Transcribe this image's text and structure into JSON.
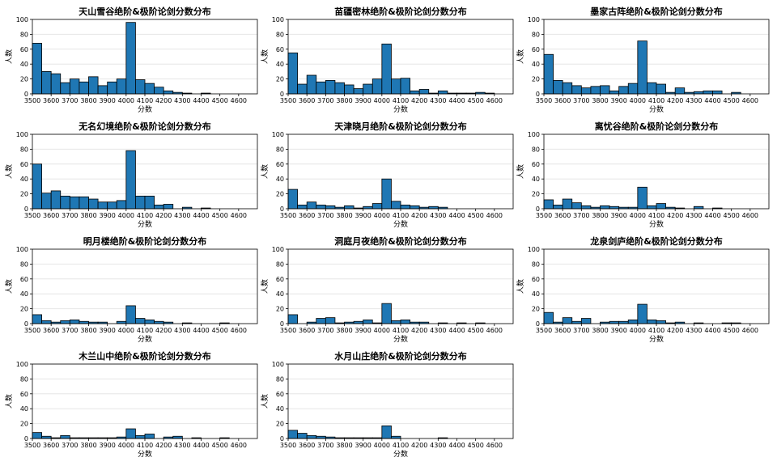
{
  "chart_data": [
    {
      "type": "bar",
      "title": "天山雪谷绝阶&极阶论剑分数分布",
      "xlabel": "分数",
      "ylabel": "人数",
      "bin_start": 3500,
      "bin_width": 50,
      "xlim": [
        3500,
        4700
      ],
      "ylim": [
        0,
        100
      ],
      "xticks": [
        "3500",
        "3600",
        "3700",
        "3800",
        "3900",
        "4000",
        "4100",
        "4200",
        "4300",
        "4400",
        "4500",
        "4600"
      ],
      "yticks": [
        "0",
        "20",
        "40",
        "60",
        "80",
        "100"
      ],
      "grid": "y",
      "values": [
        68,
        30,
        27,
        15,
        20,
        16,
        23,
        11,
        16,
        20,
        96,
        19,
        14,
        9,
        4,
        2,
        1,
        0,
        1,
        0,
        0,
        0
      ]
    },
    {
      "type": "bar",
      "title": "苗疆密林绝阶&极阶论剑分数分布",
      "xlabel": "分数",
      "ylabel": "人数",
      "bin_start": 3500,
      "bin_width": 50,
      "xlim": [
        3500,
        4700
      ],
      "ylim": [
        0,
        100
      ],
      "xticks": [
        "3500",
        "3600",
        "3700",
        "3800",
        "3900",
        "4000",
        "4100",
        "4200",
        "4300",
        "4400",
        "4500",
        "4600"
      ],
      "yticks": [
        "0",
        "20",
        "40",
        "60",
        "80",
        "100"
      ],
      "grid": "y",
      "values": [
        55,
        13,
        25,
        16,
        18,
        15,
        12,
        7,
        13,
        20,
        67,
        20,
        21,
        4,
        6,
        1,
        4,
        1,
        1,
        1,
        2,
        1
      ]
    },
    {
      "type": "bar",
      "title": "墨家古阵绝阶&极阶论剑分数分布",
      "xlabel": "分数",
      "ylabel": "人数",
      "bin_start": 3500,
      "bin_width": 50,
      "xlim": [
        3500,
        4700
      ],
      "ylim": [
        0,
        100
      ],
      "xticks": [
        "3500",
        "3600",
        "3700",
        "3800",
        "3900",
        "4000",
        "4100",
        "4200",
        "4300",
        "4400",
        "4500",
        "4600"
      ],
      "yticks": [
        "0",
        "20",
        "40",
        "60",
        "80",
        "100"
      ],
      "grid": "y",
      "values": [
        53,
        18,
        15,
        11,
        8,
        10,
        11,
        4,
        10,
        14,
        71,
        15,
        13,
        2,
        8,
        2,
        3,
        4,
        4,
        0,
        2,
        0
      ]
    },
    {
      "type": "bar",
      "title": "无名幻境绝阶&极阶论剑分数分布",
      "xlabel": "分数",
      "ylabel": "人数",
      "bin_start": 3500,
      "bin_width": 50,
      "xlim": [
        3500,
        4700
      ],
      "ylim": [
        0,
        100
      ],
      "xticks": [
        "3500",
        "3600",
        "3700",
        "3800",
        "3900",
        "4000",
        "4100",
        "4200",
        "4300",
        "4400",
        "4500",
        "4600"
      ],
      "yticks": [
        "0",
        "20",
        "40",
        "60",
        "80",
        "100"
      ],
      "grid": "y",
      "values": [
        60,
        21,
        24,
        17,
        16,
        16,
        13,
        9,
        9,
        11,
        78,
        17,
        17,
        5,
        6,
        0,
        2,
        0,
        1,
        0,
        0,
        0
      ]
    },
    {
      "type": "bar",
      "title": "天津晓月绝阶&极阶论剑分数分布",
      "xlabel": "分数",
      "ylabel": "人数",
      "bin_start": 3500,
      "bin_width": 50,
      "xlim": [
        3500,
        4700
      ],
      "ylim": [
        0,
        100
      ],
      "xticks": [
        "3500",
        "3600",
        "3700",
        "3800",
        "3900",
        "4000",
        "4100",
        "4200",
        "4300",
        "4400",
        "4500",
        "4600"
      ],
      "yticks": [
        "0",
        "20",
        "40",
        "60",
        "80",
        "100"
      ],
      "grid": "y",
      "values": [
        26,
        5,
        9,
        5,
        4,
        2,
        4,
        1,
        3,
        7,
        40,
        10,
        5,
        4,
        2,
        3,
        2,
        0,
        0,
        0,
        0,
        0
      ]
    },
    {
      "type": "bar",
      "title": "离忧谷绝阶&极阶论剑分数分布",
      "xlabel": "分数",
      "ylabel": "人数",
      "bin_start": 3500,
      "bin_width": 50,
      "xlim": [
        3500,
        4700
      ],
      "ylim": [
        0,
        100
      ],
      "xticks": [
        "3500",
        "3600",
        "3700",
        "3800",
        "3900",
        "4000",
        "4100",
        "4200",
        "4300",
        "4400",
        "4500",
        "4600"
      ],
      "yticks": [
        "0",
        "20",
        "40",
        "60",
        "80",
        "100"
      ],
      "grid": "y",
      "values": [
        12,
        5,
        13,
        8,
        4,
        2,
        4,
        3,
        2,
        2,
        29,
        4,
        7,
        2,
        1,
        0,
        3,
        0,
        1,
        0,
        0,
        0
      ]
    },
    {
      "type": "bar",
      "title": "明月楼绝阶&极阶论剑分数分布",
      "xlabel": "分数",
      "ylabel": "人数",
      "bin_start": 3500,
      "bin_width": 50,
      "xlim": [
        3500,
        4700
      ],
      "ylim": [
        0,
        100
      ],
      "xticks": [
        "3500",
        "3600",
        "3700",
        "3800",
        "3900",
        "4000",
        "4100",
        "4200",
        "4300",
        "4400",
        "4500",
        "4600"
      ],
      "yticks": [
        "0",
        "20",
        "40",
        "60",
        "80",
        "100"
      ],
      "grid": "y",
      "values": [
        12,
        4,
        2,
        4,
        5,
        3,
        2,
        2,
        0,
        3,
        24,
        7,
        5,
        3,
        2,
        0,
        1,
        0,
        0,
        0,
        1,
        0
      ]
    },
    {
      "type": "bar",
      "title": "洞庭月夜绝阶&极阶论剑分数分布",
      "xlabel": "分数",
      "ylabel": "人数",
      "bin_start": 3500,
      "bin_width": 50,
      "xlim": [
        3500,
        4700
      ],
      "ylim": [
        0,
        100
      ],
      "xticks": [
        "3500",
        "3600",
        "3700",
        "3800",
        "3900",
        "4000",
        "4100",
        "4200",
        "4300",
        "4400",
        "4500",
        "4600"
      ],
      "yticks": [
        "0",
        "20",
        "40",
        "60",
        "80",
        "100"
      ],
      "grid": "y",
      "values": [
        12,
        0,
        2,
        7,
        8,
        1,
        2,
        3,
        5,
        1,
        27,
        4,
        5,
        2,
        2,
        0,
        1,
        0,
        1,
        0,
        1,
        0
      ]
    },
    {
      "type": "bar",
      "title": "龙泉剑庐绝阶&极阶论剑分数分布",
      "xlabel": "分数",
      "ylabel": "人数",
      "bin_start": 3500,
      "bin_width": 50,
      "xlim": [
        3500,
        4700
      ],
      "ylim": [
        0,
        100
      ],
      "xticks": [
        "3500",
        "3600",
        "3700",
        "3800",
        "3900",
        "4000",
        "4100",
        "4200",
        "4300",
        "4400",
        "4500",
        "4600"
      ],
      "yticks": [
        "0",
        "20",
        "40",
        "60",
        "80",
        "100"
      ],
      "grid": "y",
      "values": [
        15,
        2,
        8,
        3,
        7,
        0,
        2,
        3,
        3,
        5,
        26,
        5,
        4,
        1,
        2,
        0,
        1,
        0,
        0,
        1,
        1,
        0
      ]
    },
    {
      "type": "bar",
      "title": "木兰山中绝阶&极阶论剑分数分布",
      "xlabel": "分数",
      "ylabel": "人数",
      "bin_start": 3500,
      "bin_width": 50,
      "xlim": [
        3500,
        4700
      ],
      "ylim": [
        0,
        100
      ],
      "xticks": [
        "3500",
        "3600",
        "3700",
        "3800",
        "3900",
        "4000",
        "4100",
        "4200",
        "4300",
        "4400",
        "4500",
        "4600"
      ],
      "yticks": [
        "0",
        "20",
        "40",
        "60",
        "80",
        "100"
      ],
      "grid": "y",
      "values": [
        8,
        3,
        1,
        4,
        1,
        1,
        1,
        1,
        1,
        2,
        13,
        4,
        6,
        0,
        2,
        3,
        0,
        1,
        0,
        0,
        1,
        0
      ]
    },
    {
      "type": "bar",
      "title": "水月山庄绝阶&极阶论剑分数分布",
      "xlabel": "分数",
      "ylabel": "人数",
      "bin_start": 3500,
      "bin_width": 50,
      "xlim": [
        3500,
        4700
      ],
      "ylim": [
        0,
        100
      ],
      "xticks": [
        "3500",
        "3600",
        "3700",
        "3800",
        "3900",
        "4000",
        "4100",
        "4200",
        "4300",
        "4400",
        "4500",
        "4600"
      ],
      "yticks": [
        "0",
        "20",
        "40",
        "60",
        "80",
        "100"
      ],
      "grid": "y",
      "values": [
        11,
        7,
        4,
        3,
        2,
        1,
        1,
        1,
        1,
        1,
        17,
        3,
        0,
        0,
        0,
        0,
        1,
        0,
        0,
        0,
        0,
        0
      ]
    }
  ],
  "colors": {
    "bar_fill": "#1f77b4",
    "bar_edge": "#000000",
    "grid": "#e6e6e6",
    "axis": "#000000"
  }
}
